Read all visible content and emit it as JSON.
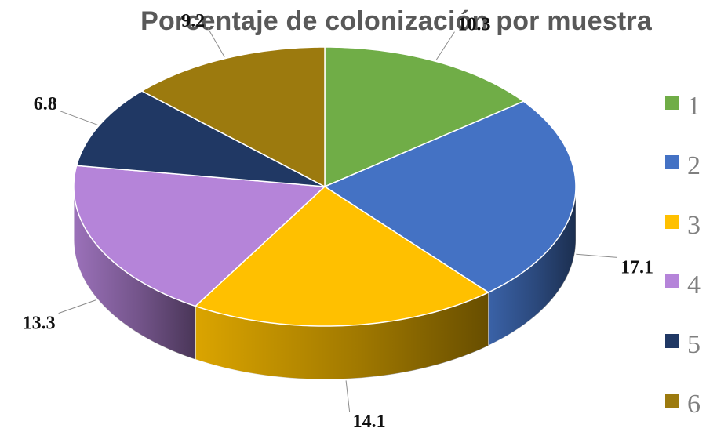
{
  "chart_data": {
    "type": "pie",
    "title": "Porcentaje de colonización por muestra",
    "categories": [
      "1",
      "2",
      "3",
      "4",
      "5",
      "6"
    ],
    "values": [
      10.3,
      17.1,
      14.1,
      13.3,
      6.8,
      9.2
    ],
    "data_labels": [
      "10.3",
      "17.1",
      "14.1",
      "13.3",
      "6.8",
      "9.2"
    ],
    "colors": [
      "#70ad47",
      "#4472c4",
      "#ffc000",
      "#b584d9",
      "#203864",
      "#9c7a0e"
    ],
    "style": "3d",
    "legend": "right",
    "start_angle": "12 o'clock",
    "direction": "clockwise"
  }
}
